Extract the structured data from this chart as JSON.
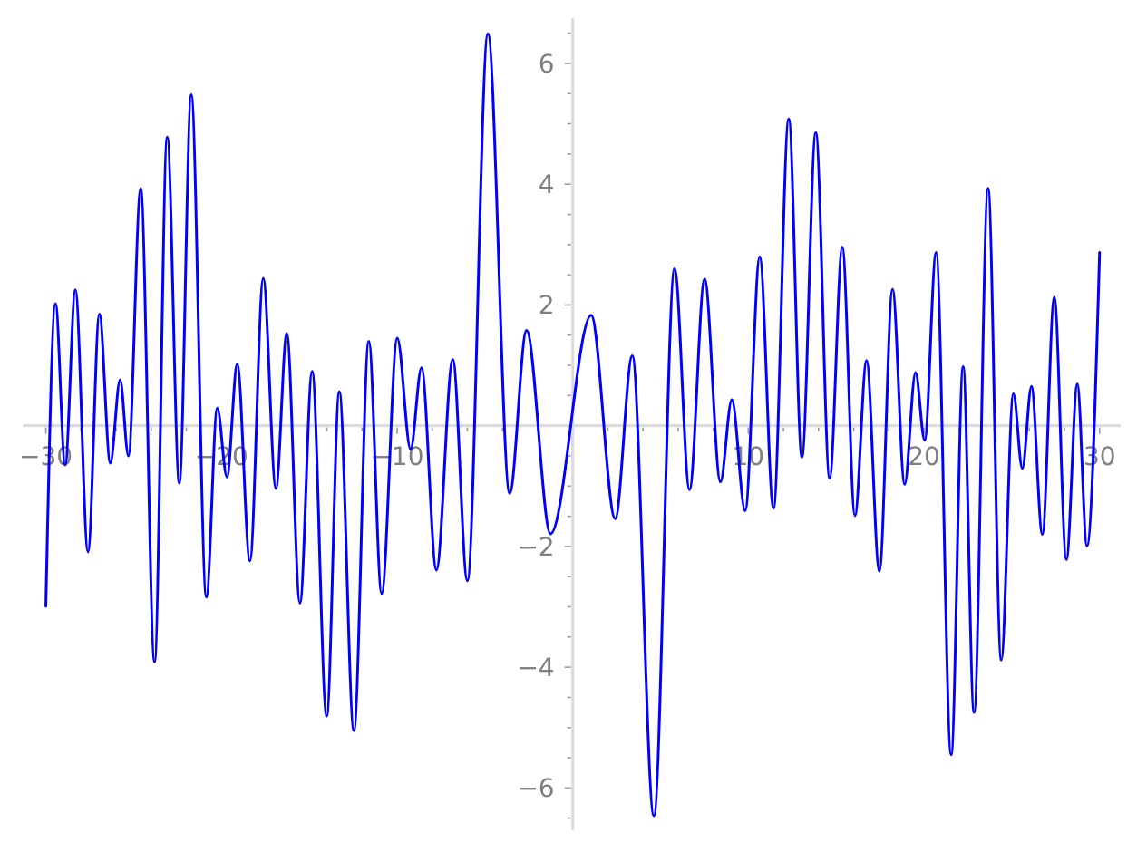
{
  "chart_data": {
    "type": "line",
    "x": [
      -30,
      -29.45,
      -28.9,
      -28.32,
      -27.6,
      -26.95,
      -26.33,
      -25.77,
      -25.3,
      -24.6,
      -23.81,
      -23.09,
      -22.4,
      -21.72,
      -20.86,
      -20.24,
      -19.69,
      -19.1,
      -18.38,
      -17.62,
      -16.9,
      -16.28,
      -15.53,
      -14.84,
      -14.01,
      -13.29,
      -12.46,
      -11.61,
      -10.88,
      -9.99,
      -9.23,
      -8.61,
      -7.76,
      -6.83,
      -6.0,
      -4.83,
      -3.59,
      -2.63,
      -1.26,
      1.05,
      2.42,
      3.39,
      4.62,
      5.8,
      6.65,
      7.51,
      8.41,
      9.06,
      9.82,
      10.65,
      11.43,
      12.3,
      13.05,
      13.84,
      14.63,
      15.35,
      16.07,
      16.73,
      17.46,
      18.21,
      18.9,
      19.52,
      20.04,
      20.69,
      21.55,
      22.23,
      22.85,
      23.65,
      24.4,
      25.09,
      25.6,
      26.12,
      26.74,
      27.42,
      28.11,
      28.73,
      29.28,
      30
    ],
    "values": [
      -2.99,
      2.02,
      -0.65,
      2.25,
      -2.09,
      1.85,
      -0.62,
      0.76,
      -0.5,
      3.93,
      -3.91,
      4.78,
      -0.95,
      5.48,
      -2.84,
      0.29,
      -0.85,
      1.02,
      -2.24,
      2.44,
      -1.04,
      1.53,
      -2.94,
      0.9,
      -4.81,
      0.56,
      -5.05,
      1.4,
      -2.78,
      1.45,
      -0.39,
      0.96,
      -2.39,
      1.1,
      -2.57,
      6.49,
      -1.12,
      1.58,
      -1.79,
      1.83,
      -1.54,
      1.16,
      -6.46,
      2.6,
      -1.06,
      2.43,
      -0.93,
      0.43,
      -1.41,
      2.8,
      -1.37,
      5.08,
      -0.52,
      4.85,
      -0.87,
      2.96,
      -1.49,
      1.08,
      -2.41,
      2.26,
      -0.97,
      0.88,
      -0.24,
      2.87,
      -5.45,
      0.98,
      -4.75,
      3.93,
      -3.88,
      0.53,
      -0.71,
      0.65,
      -1.8,
      2.13,
      -2.22,
      0.69,
      -1.99,
      2.87
    ],
    "color": "#0000ff",
    "xlim": [
      -31.3,
      31.2
    ],
    "ylim": [
      -6.7,
      6.75
    ],
    "xticks": [
      {
        "value": -30,
        "label": "−30"
      },
      {
        "value": -28,
        "label": null
      },
      {
        "value": -26,
        "label": null
      },
      {
        "value": -24,
        "label": null
      },
      {
        "value": -22,
        "label": null
      },
      {
        "value": -20,
        "label": "−20"
      },
      {
        "value": -18,
        "label": null
      },
      {
        "value": -16,
        "label": null
      },
      {
        "value": -14,
        "label": null
      },
      {
        "value": -12,
        "label": null
      },
      {
        "value": -10,
        "label": "−10"
      },
      {
        "value": -8,
        "label": null
      },
      {
        "value": -6,
        "label": null
      },
      {
        "value": -4,
        "label": null
      },
      {
        "value": -2,
        "label": null
      },
      {
        "value": 2,
        "label": null
      },
      {
        "value": 4,
        "label": null
      },
      {
        "value": 6,
        "label": null
      },
      {
        "value": 8,
        "label": null
      },
      {
        "value": 10,
        "label": "10"
      },
      {
        "value": 12,
        "label": null
      },
      {
        "value": 14,
        "label": null
      },
      {
        "value": 16,
        "label": null
      },
      {
        "value": 18,
        "label": null
      },
      {
        "value": 20,
        "label": "20"
      },
      {
        "value": 22,
        "label": null
      },
      {
        "value": 24,
        "label": null
      },
      {
        "value": 26,
        "label": null
      },
      {
        "value": 28,
        "label": null
      },
      {
        "value": 30,
        "label": "30"
      }
    ],
    "yticks": [
      {
        "value": -6.5,
        "label": null
      },
      {
        "value": -6,
        "label": "−6"
      },
      {
        "value": -5.5,
        "label": null
      },
      {
        "value": -5,
        "label": null
      },
      {
        "value": -4.5,
        "label": null
      },
      {
        "value": -4,
        "label": "−4"
      },
      {
        "value": -3.5,
        "label": null
      },
      {
        "value": -3,
        "label": null
      },
      {
        "value": -2.5,
        "label": null
      },
      {
        "value": -2,
        "label": "−2"
      },
      {
        "value": -1.5,
        "label": null
      },
      {
        "value": -1,
        "label": null
      },
      {
        "value": -0.5,
        "label": null
      },
      {
        "value": 0.5,
        "label": null
      },
      {
        "value": 1,
        "label": null
      },
      {
        "value": 1.5,
        "label": null
      },
      {
        "value": 2,
        "label": "2"
      },
      {
        "value": 2.5,
        "label": null
      },
      {
        "value": 3,
        "label": null
      },
      {
        "value": 3.5,
        "label": null
      },
      {
        "value": 4,
        "label": "4"
      },
      {
        "value": 4.5,
        "label": null
      },
      {
        "value": 5,
        "label": null
      },
      {
        "value": 5.5,
        "label": null
      },
      {
        "value": 6,
        "label": "6"
      },
      {
        "value": 6.5,
        "label": null
      }
    ]
  }
}
